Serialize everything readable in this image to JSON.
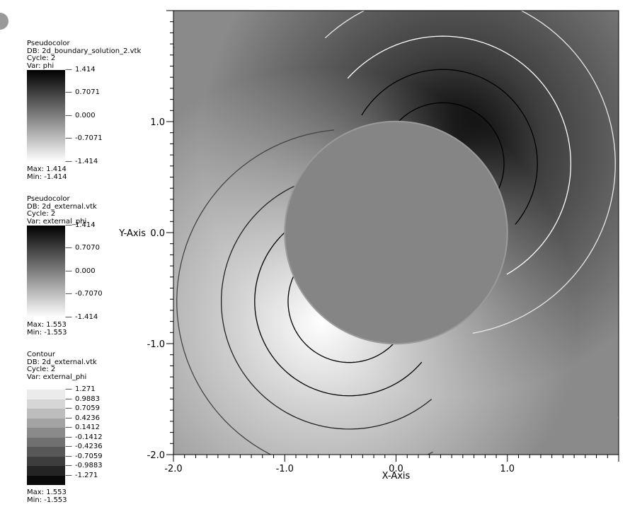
{
  "legends": [
    {
      "plot": "Pseudocolor",
      "db": "DB: 2d_boundary_solution_2.vtk",
      "cycle": "Cycle: 2",
      "var": "Var: phi",
      "ticks": [
        "1.414",
        "0.7071",
        "0.000",
        "-0.7071",
        "-1.414"
      ],
      "max": "Max:  1.414",
      "min": "Min: -1.414"
    },
    {
      "plot": "Pseudocolor",
      "db": "DB: 2d_external.vtk",
      "cycle": "Cycle: 2",
      "var": "Var: external_phi",
      "ticks": [
        "1.414",
        "0.7070",
        "0.000",
        "-0.7070",
        "-1.414"
      ],
      "max": "Max:  1.553",
      "min": "Min: -1.553"
    },
    {
      "plot": "Contour",
      "db": "DB: 2d_external.vtk",
      "cycle": "Cycle: 2",
      "var": "Var: external_phi",
      "ticks": [
        "1.271",
        "0.9883",
        "0.7059",
        "0.4236",
        "0.1412",
        "-0.1412",
        "-0.4236",
        "-0.7059",
        "-0.9883",
        "-1.271"
      ],
      "band_colors": [
        "#ebebeb",
        "#d6d6d6",
        "#bdbdbd",
        "#a3a3a3",
        "#8a8a8a",
        "#707070",
        "#575757",
        "#3d3d3d",
        "#242424",
        "#0a0a0a"
      ],
      "max": "Max:  1.553",
      "min": "Min: -1.553"
    }
  ],
  "chart_data": {
    "type": "heatmap",
    "title": "",
    "xlabel": "X-Axis",
    "ylabel": "Y-Axis",
    "xlim": [
      -2.0,
      2.0
    ],
    "ylim": [
      -2.0,
      2.0
    ],
    "x_ticks": [
      "-2.0",
      "-1.0",
      "0.0",
      "1.0"
    ],
    "y_ticks": [
      "1.0",
      "0.0",
      "-1.0",
      "-2.0"
    ],
    "x_tick_values": [
      -2.0,
      -1.0,
      0.0,
      1.0
    ],
    "y_tick_values": [
      1.0,
      0.0,
      -1.0,
      -2.0
    ],
    "field": "external_phi",
    "range": [
      -1.553,
      1.553
    ],
    "boundary_circle": {
      "center": [
        0.0,
        0.0
      ],
      "radius": 1.0,
      "fill": "#858585"
    },
    "contour_levels": [
      1.271,
      0.9883,
      0.7059,
      0.4236,
      0.1412,
      -0.1412,
      -0.4236,
      -0.7059,
      -0.9883,
      -1.271
    ],
    "colormap": "gray (high = black, low = white)"
  }
}
